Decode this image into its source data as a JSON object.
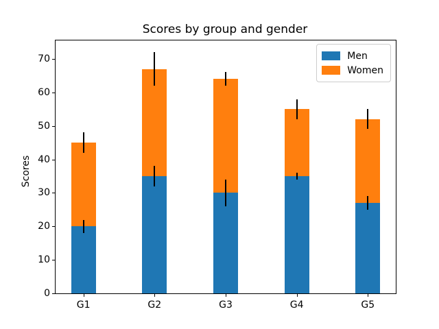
{
  "figure": {
    "kind": "matplotlib-figure"
  },
  "chart_data": {
    "type": "bar",
    "stacked": true,
    "title": "Scores by group and gender",
    "xlabel": "",
    "ylabel": "Scores",
    "categories": [
      "G1",
      "G2",
      "G3",
      "G4",
      "G5"
    ],
    "series": [
      {
        "name": "Men",
        "color": "#1f77b4",
        "values": [
          20,
          35,
          30,
          35,
          27
        ],
        "yerr": [
          2,
          3,
          4,
          1,
          2
        ]
      },
      {
        "name": "Women",
        "color": "#ff7f0e",
        "values": [
          25,
          32,
          34,
          20,
          25
        ],
        "yerr": [
          3,
          5,
          2,
          3,
          3
        ]
      }
    ],
    "stack_totals": [
      45,
      67,
      64,
      55,
      52
    ],
    "yticks": [
      0,
      10,
      20,
      30,
      40,
      50,
      60,
      70
    ],
    "ylim": [
      0,
      75.5
    ],
    "bar_width_fraction": 0.35,
    "error_bar_color": "#000000",
    "grid": false,
    "legend": {
      "position": "upper right",
      "entries": [
        "Men",
        "Women"
      ]
    }
  }
}
